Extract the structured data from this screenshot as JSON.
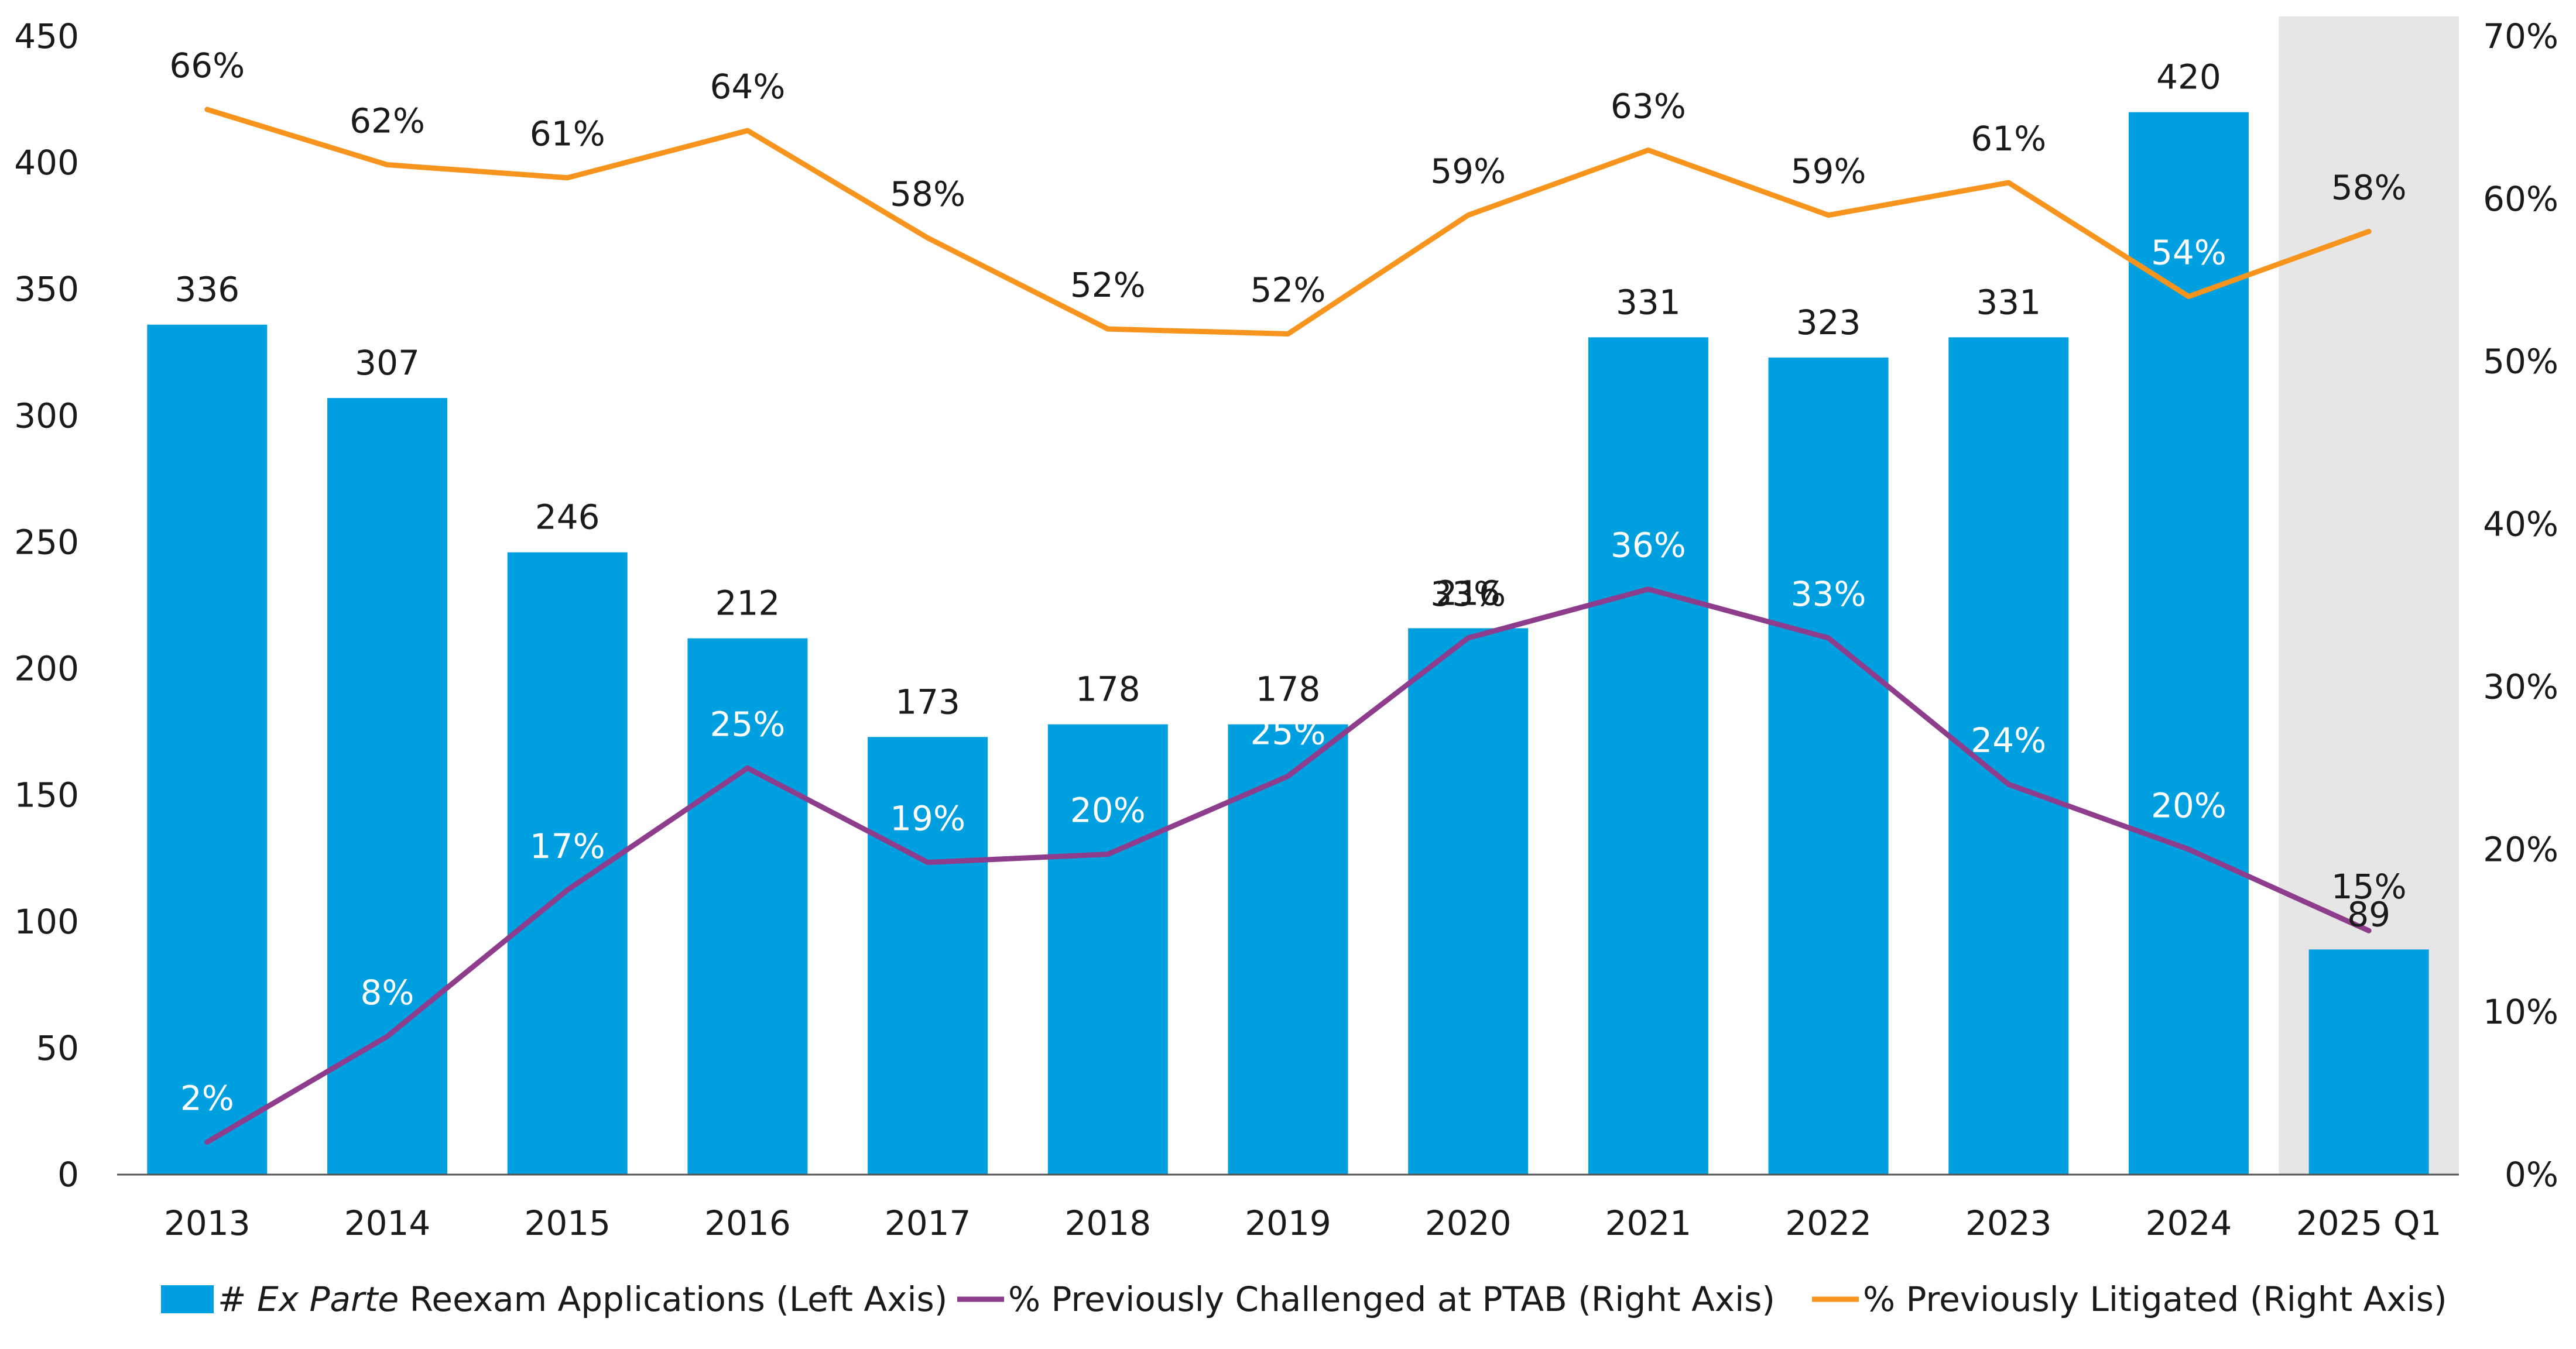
{
  "chart_data": {
    "type": "bar",
    "categories": [
      "2013",
      "2014",
      "2015",
      "2016",
      "2017",
      "2018",
      "2019",
      "2020",
      "2021",
      "2022",
      "2023",
      "2024",
      "2025 Q1"
    ],
    "highlighted_category": "2025 Q1",
    "left_axis": {
      "ylim": [
        0,
        450
      ],
      "ticks": [
        "0",
        "50",
        "100",
        "150",
        "200",
        "250",
        "300",
        "350",
        "400",
        "450"
      ]
    },
    "right_axis": {
      "ylim": [
        0,
        70
      ],
      "ticks": [
        "0%",
        "10%",
        "20%",
        "30%",
        "40%",
        "50%",
        "60%",
        "70%"
      ]
    },
    "grid": false,
    "legend_position": "bottom",
    "series": [
      {
        "name_prefix": "# ",
        "name_italic": "Ex Parte",
        "name_suffix": " Reexam Applications (Left Axis)",
        "type": "bar",
        "axis": "left",
        "color": "#009FDF",
        "values": [
          336,
          307,
          246,
          212,
          173,
          178,
          178,
          216,
          331,
          323,
          331,
          420,
          89
        ],
        "labels": [
          "336",
          "307",
          "246",
          "212",
          "173",
          "178",
          "178",
          "216",
          "331",
          "323",
          "331",
          "420",
          "89"
        ]
      },
      {
        "name": "% Previously Challenged at PTAB (Right Axis)",
        "type": "line",
        "axis": "right",
        "color": "#8E3D8C",
        "values": [
          2,
          8.5,
          17.5,
          25,
          19.2,
          19.7,
          24.5,
          33,
          36,
          33,
          24,
          20,
          15
        ],
        "labels": [
          "2%",
          "8%",
          "17%",
          "25%",
          "19%",
          "20%",
          "25%",
          "33%",
          "36%",
          "33%",
          "24%",
          "20%",
          "15%"
        ]
      },
      {
        "name": "% Previously Litigated (Right Axis)",
        "type": "line",
        "axis": "right",
        "color": "#F7941D",
        "values": [
          65.5,
          62.1,
          61.3,
          64.2,
          57.6,
          52,
          51.7,
          59,
          63,
          59,
          61,
          54,
          58
        ],
        "labels": [
          "66%",
          "62%",
          "61%",
          "64%",
          "58%",
          "52%",
          "52%",
          "59%",
          "63%",
          "59%",
          "61%",
          "54%",
          "58%"
        ]
      }
    ]
  }
}
